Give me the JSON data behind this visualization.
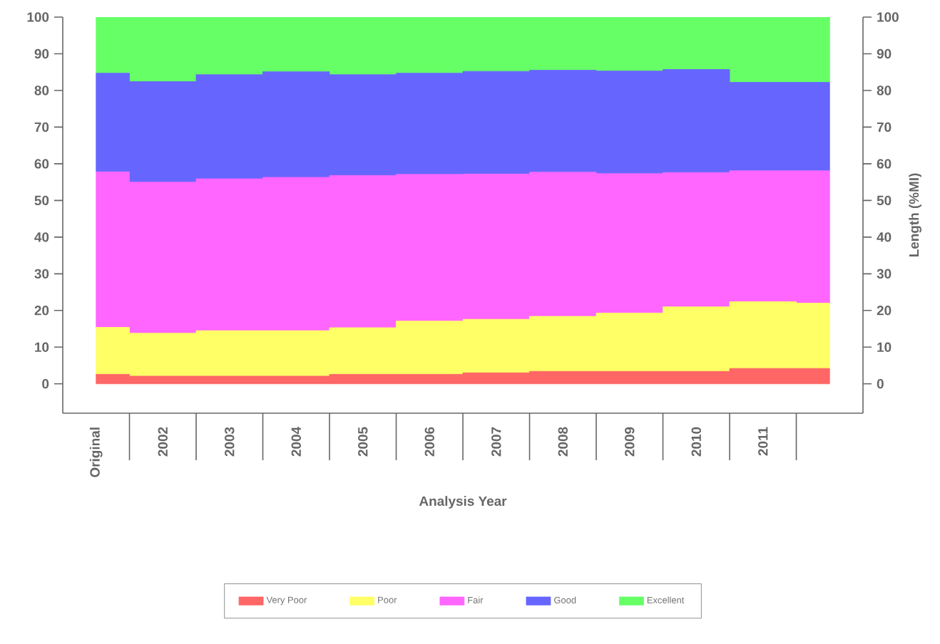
{
  "chart_data": {
    "type": "area",
    "stacked": true,
    "xlabel": "Analysis Year",
    "ylabel": "Length (%MI)",
    "categories": [
      "Original",
      "2002",
      "2003",
      "2004",
      "2005",
      "2006",
      "2007",
      "2008",
      "2009",
      "2010",
      "2011",
      null
    ],
    "series": [
      {
        "name": "Very Poor",
        "color": "#ff6666",
        "values": [
          2.6,
          2.1,
          2.1,
          2.1,
          2.6,
          2.6,
          3.0,
          3.4,
          3.4,
          3.4,
          4.2,
          4.2
        ]
      },
      {
        "name": "Poor",
        "color": "#ffff66",
        "values": [
          12.8,
          11.7,
          12.4,
          12.4,
          12.7,
          14.5,
          14.6,
          15.0,
          15.9,
          17.6,
          18.2,
          17.8
        ]
      },
      {
        "name": "Fair",
        "color": "#ff66ff",
        "values": [
          42.4,
          41.2,
          41.4,
          41.8,
          41.5,
          40.0,
          39.6,
          39.3,
          38.0,
          36.6,
          35.7,
          36.1
        ]
      },
      {
        "name": "Good",
        "color": "#6666ff",
        "values": [
          26.9,
          27.4,
          28.4,
          28.8,
          27.5,
          27.6,
          28.0,
          27.8,
          28.0,
          28.1,
          24.1,
          24.1
        ]
      },
      {
        "name": "Excellent",
        "color": "#66ff66",
        "values": [
          15.3,
          17.6,
          15.7,
          14.9,
          15.7,
          15.3,
          14.8,
          14.5,
          14.7,
          14.3,
          17.8,
          17.8
        ]
      }
    ],
    "ylim": [
      -8,
      100
    ],
    "yticks": [
      0,
      10,
      20,
      30,
      40,
      50,
      60,
      70,
      80,
      90,
      100
    ],
    "y2lim": [
      -8,
      100
    ],
    "y2ticks": [
      0,
      10,
      20,
      30,
      40,
      50,
      60,
      70,
      80,
      90,
      100
    ],
    "legend": "bottom"
  }
}
